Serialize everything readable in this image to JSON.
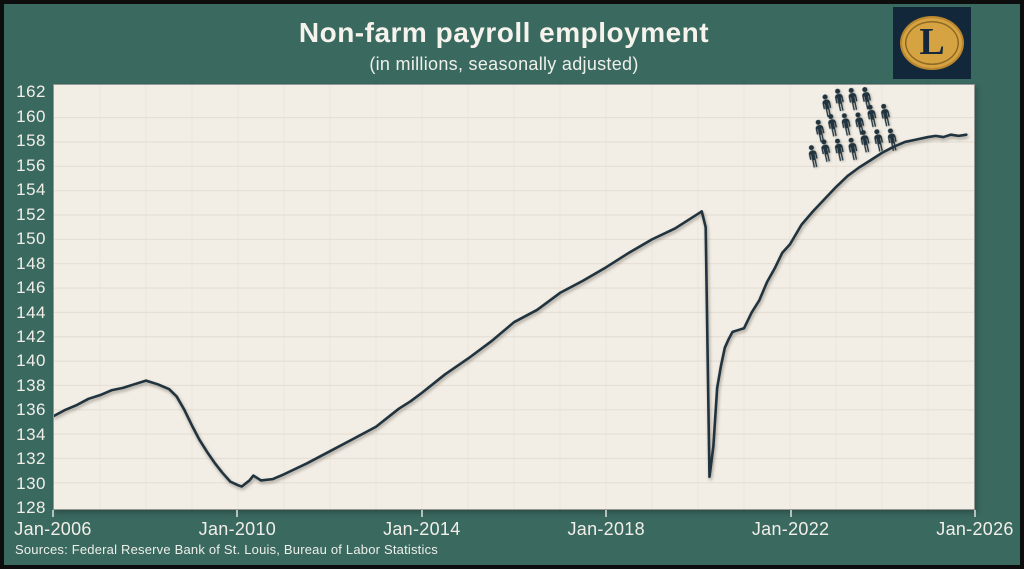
{
  "header": {
    "title": "Non-farm payroll employment",
    "subtitle": "(in millions, seasonally adjusted)"
  },
  "logo": {
    "letter": "L"
  },
  "footer": {
    "source": "Sources: Federal Reserve Bank of St. Louis, Bureau of Labor Statistics"
  },
  "colors": {
    "background": "#3a6960",
    "frame_border": "#0d0d0d",
    "plot_background": "#f2eee6",
    "gridline": "#e4ded3",
    "line": "#20333e",
    "text": "#f1efe8",
    "tick": "#c9d3cd",
    "logo_background": "#13273a",
    "logo_gold": "#d6a342",
    "logo_ring": "#8f6a23",
    "logo_letter": "#16293c"
  },
  "chart_data": {
    "type": "line",
    "title": "Non-farm payroll employment",
    "subtitle": "(in millions, seasonally adjusted)",
    "xlabel": "",
    "ylabel": "",
    "legend": "none",
    "grid": {
      "horizontal": true,
      "vertical": true
    },
    "ylim": [
      128,
      162
    ],
    "y_tick_step": 2,
    "y_ticks": [
      128,
      130,
      132,
      134,
      136,
      138,
      140,
      142,
      144,
      146,
      148,
      150,
      152,
      154,
      156,
      158,
      160,
      162
    ],
    "x_range_years": [
      2006,
      2026
    ],
    "x_ticks": [
      {
        "label": "Jan-2006",
        "year": 2006
      },
      {
        "label": "Jan-2010",
        "year": 2010
      },
      {
        "label": "Jan-2014",
        "year": 2014
      },
      {
        "label": "Jan-2018",
        "year": 2018
      },
      {
        "label": "Jan-2022",
        "year": 2022
      },
      {
        "label": "Jan-2026",
        "year": 2026
      }
    ],
    "series": [
      {
        "name": "Total non-farm payroll employment (millions, seasonally adjusted)",
        "points": [
          [
            "2006-01",
            135.5
          ],
          [
            "2006-04",
            136.0
          ],
          [
            "2006-07",
            136.4
          ],
          [
            "2006-10",
            136.9
          ],
          [
            "2007-01",
            137.2
          ],
          [
            "2007-04",
            137.6
          ],
          [
            "2007-07",
            137.8
          ],
          [
            "2007-10",
            138.1
          ],
          [
            "2008-01",
            138.4
          ],
          [
            "2008-04",
            138.1
          ],
          [
            "2008-07",
            137.7
          ],
          [
            "2008-09",
            137.1
          ],
          [
            "2008-11",
            136.0
          ],
          [
            "2009-01",
            134.7
          ],
          [
            "2009-03",
            133.5
          ],
          [
            "2009-05",
            132.5
          ],
          [
            "2009-07",
            131.6
          ],
          [
            "2009-09",
            130.8
          ],
          [
            "2009-11",
            130.1
          ],
          [
            "2010-01",
            129.8
          ],
          [
            "2010-02",
            129.7
          ],
          [
            "2010-04",
            130.2
          ],
          [
            "2010-05",
            130.6
          ],
          [
            "2010-07",
            130.2
          ],
          [
            "2010-10",
            130.3
          ],
          [
            "2011-01",
            130.7
          ],
          [
            "2011-07",
            131.6
          ],
          [
            "2012-01",
            132.6
          ],
          [
            "2012-07",
            133.6
          ],
          [
            "2013-01",
            134.6
          ],
          [
            "2013-07",
            136.1
          ],
          [
            "2013-10",
            136.7
          ],
          [
            "2014-01",
            137.4
          ],
          [
            "2014-07",
            138.9
          ],
          [
            "2015-01",
            140.2
          ],
          [
            "2015-07",
            141.6
          ],
          [
            "2016-01",
            143.2
          ],
          [
            "2016-07",
            144.2
          ],
          [
            "2017-01",
            145.6
          ],
          [
            "2017-07",
            146.6
          ],
          [
            "2018-01",
            147.7
          ],
          [
            "2018-07",
            148.9
          ],
          [
            "2019-01",
            150.0
          ],
          [
            "2019-07",
            150.9
          ],
          [
            "2020-01",
            152.1
          ],
          [
            "2020-02",
            152.3
          ],
          [
            "2020-03",
            151.0
          ],
          [
            "2020-04",
            130.5
          ],
          [
            "2020-05",
            133.0
          ],
          [
            "2020-06",
            137.8
          ],
          [
            "2020-07",
            139.6
          ],
          [
            "2020-08",
            141.1
          ],
          [
            "2020-09",
            141.8
          ],
          [
            "2020-10",
            142.4
          ],
          [
            "2020-12",
            142.6
          ],
          [
            "2021-01",
            142.7
          ],
          [
            "2021-03",
            144.0
          ],
          [
            "2021-05",
            145.0
          ],
          [
            "2021-07",
            146.5
          ],
          [
            "2021-09",
            147.6
          ],
          [
            "2021-11",
            148.9
          ],
          [
            "2022-01",
            149.6
          ],
          [
            "2022-04",
            151.2
          ],
          [
            "2022-07",
            152.3
          ],
          [
            "2022-10",
            153.3
          ],
          [
            "2023-01",
            154.3
          ],
          [
            "2023-04",
            155.2
          ],
          [
            "2023-07",
            155.9
          ],
          [
            "2023-10",
            156.5
          ],
          [
            "2024-01",
            157.1
          ],
          [
            "2024-04",
            157.6
          ],
          [
            "2024-07",
            158.0
          ],
          [
            "2024-10",
            158.2
          ],
          [
            "2025-01",
            158.4
          ],
          [
            "2025-03",
            158.5
          ],
          [
            "2025-05",
            158.4
          ],
          [
            "2025-07",
            158.6
          ],
          [
            "2025-09",
            158.5
          ],
          [
            "2025-11",
            158.6
          ]
        ]
      }
    ],
    "annotations": [
      {
        "name": "crowd-of-people-icons",
        "description": "Crowd of dark worker silhouettes standing on the rising line, around 2022-2024",
        "rows": [
          4,
          6,
          7
        ],
        "tilt_deg": -12
      }
    ]
  }
}
